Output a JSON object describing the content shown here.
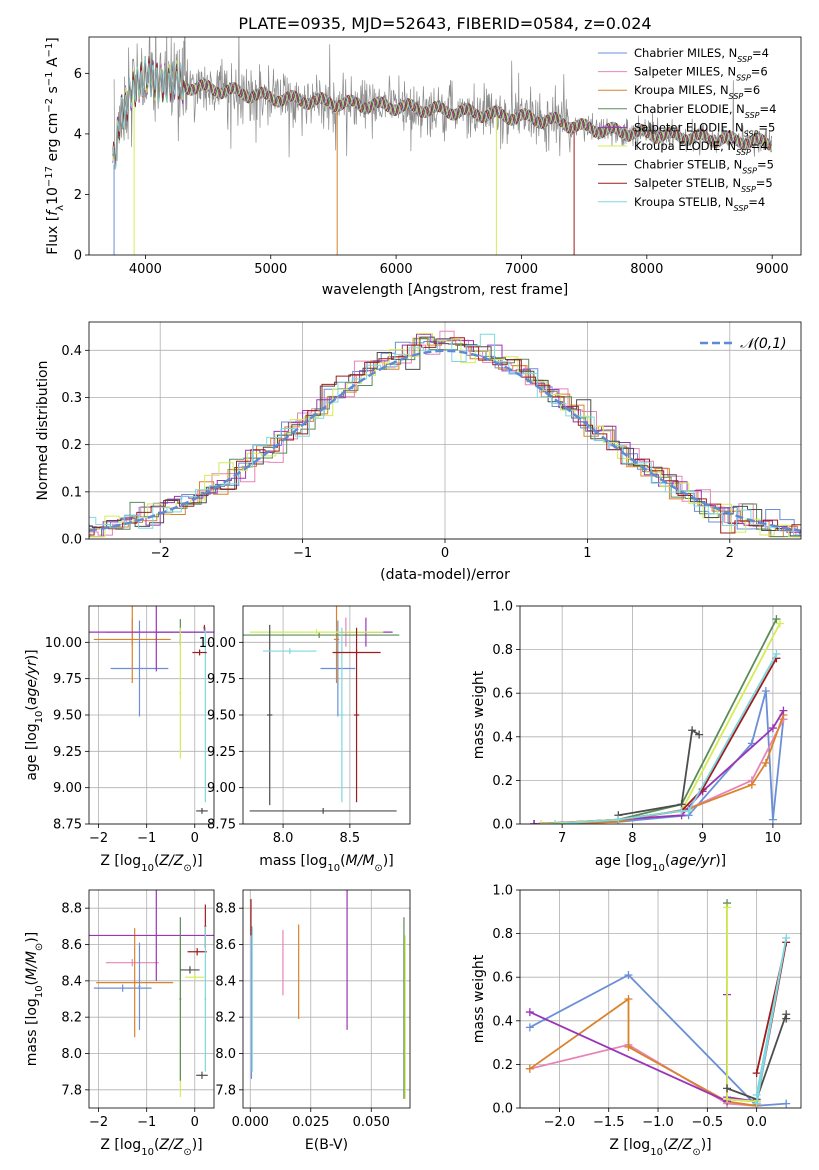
{
  "palette": {
    "Chabrier MILES": "#6a8fd8",
    "Salpeter MILES": "#e884b8",
    "Kroupa MILES": "#d9832a",
    "Chabrier ELODIE": "#5b8a5b",
    "Salpeter ELODIE": "#9a35b8",
    "Kroupa ELODIE": "#d4ec55",
    "Chabrier STELIB": "#4d4d4d",
    "Salpeter STELIB": "#a01c1c",
    "Kroupa STELIB": "#7ed8e0",
    "data": "#8a8a8a"
  },
  "chart_data": [
    {
      "id": "spectrum",
      "type": "line",
      "title": "PLATE=0935, MJD=52643, FIBERID=0584, z=0.024",
      "xlabel": "wavelength [Angstrom, rest frame]",
      "ylabel": "Flux [f_λ10^-17 erg cm^-2 s^-1 A^-1]",
      "xlim": [
        3550,
        9230
      ],
      "ylim": [
        0,
        7.2
      ],
      "xticks": [
        4000,
        5000,
        6000,
        7000,
        8000,
        9000
      ],
      "yticks": [
        0,
        2,
        4,
        6
      ],
      "legend_position": "top-right",
      "legend": [
        {
          "name": "Chabrier MILES",
          "nssp": "4"
        },
        {
          "name": "Salpeter MILES",
          "nssp": "6"
        },
        {
          "name": "Kroupa MILES",
          "nssp": "6"
        },
        {
          "name": "Chabrier ELODIE",
          "nssp": "4"
        },
        {
          "name": "Salpeter ELODIE",
          "nssp": "5"
        },
        {
          "name": "Kroupa ELODIE",
          "nssp": "4"
        },
        {
          "name": "Chabrier STELIB",
          "nssp": "5"
        },
        {
          "name": "Salpeter STELIB",
          "nssp": "5"
        },
        {
          "name": "Kroupa STELIB",
          "nssp": "4"
        }
      ],
      "continuum": {
        "x": [
          3750,
          3800,
          3900,
          4000,
          4100,
          4300,
          4500,
          4700,
          5000,
          5300,
          5600,
          6000,
          6300,
          6600,
          7000,
          7300,
          7500,
          7700,
          8000,
          8500,
          9000
        ],
        "y": [
          3.0,
          4.5,
          5.6,
          5.8,
          5.8,
          5.6,
          5.5,
          5.4,
          5.2,
          5.1,
          5.0,
          4.9,
          4.8,
          4.7,
          4.55,
          4.4,
          4.2,
          4.1,
          4.0,
          3.85,
          3.7
        ]
      }
    },
    {
      "id": "residuals",
      "type": "histogram",
      "xlabel": "(data-model)/error",
      "ylabel": "Normed distribution",
      "xlim": [
        -2.5,
        2.5
      ],
      "ylim": [
        0,
        0.46
      ],
      "xticks": [
        -2,
        -1,
        0,
        1,
        2
      ],
      "yticks": [
        0.0,
        0.1,
        0.2,
        0.3,
        0.4
      ],
      "grid": true,
      "bin_width": 0.1,
      "reference": {
        "name": "𝒩(0,1)",
        "mean": 0,
        "sigma": 1
      },
      "legend_position": "top-right"
    },
    {
      "id": "age_vs_Z",
      "type": "errorbar",
      "xlabel": "Z [log10(Z/Z☉)]",
      "ylabel": "age [log10(age/yr)]",
      "xlim": [
        -2.2,
        0.4
      ],
      "ylim": [
        8.75,
        10.25
      ],
      "xticks": [
        -2,
        -1,
        0
      ],
      "yticks": [
        8.75,
        9.0,
        9.25,
        9.5,
        9.75,
        10.0
      ],
      "grid": true,
      "points": [
        {
          "s": "Chabrier MILES",
          "x": -1.15,
          "xe": 0.6,
          "y": 9.82,
          "ye": 0.33
        },
        {
          "s": "Salpeter MILES",
          "x": -1.3,
          "xe": 0.55,
          "y": 10.07,
          "ye": 0.09
        },
        {
          "s": "Kroupa MILES",
          "x": -1.3,
          "xe": 0.8,
          "y": 10.02,
          "ye": 0.3
        },
        {
          "s": "Chabrier ELODIE",
          "x": -0.3,
          "xe": 0.5,
          "y": 10.07,
          "ye": 0.09
        },
        {
          "s": "Salpeter ELODIE",
          "x": -0.8,
          "xe": 1.4,
          "y": 10.07,
          "ye": 0.27
        },
        {
          "s": "Kroupa ELODIE",
          "x": -0.3,
          "xe": 0.02,
          "y": 9.65,
          "ye": 0.45
        },
        {
          "s": "Chabrier STELIB",
          "x": 0.15,
          "xe": 0.12,
          "y": 8.84,
          "ye": 0.02
        },
        {
          "s": "Salpeter STELIB",
          "x": 0.2,
          "xe": 0.02,
          "y": 10.1,
          "ye": 0.02
        },
        {
          "s": "Kroupa STELIB",
          "x": 0.22,
          "xe": 0.02,
          "y": 9.5,
          "ye": 0.6
        },
        {
          "s": "Salpeter STELIB",
          "x": 0.1,
          "xe": 0.15,
          "y": 9.93,
          "ye": 0.02
        }
      ]
    },
    {
      "id": "age_vs_mass",
      "type": "errorbar",
      "xlabel": "mass [log10(M/M☉)]",
      "ylabel": "",
      "xlim": [
        7.7,
        8.95
      ],
      "ylim": [
        8.75,
        10.25
      ],
      "xticks": [
        8.0,
        8.5
      ],
      "yticks": [
        8.75,
        9.0,
        9.25,
        9.5,
        9.75,
        10.0
      ],
      "grid": true,
      "points": [
        {
          "s": "Chabrier MILES",
          "x": 8.41,
          "xe": 0.13,
          "y": 9.82,
          "ye": 0.33
        },
        {
          "s": "Salpeter MILES",
          "x": 8.47,
          "xe": 0.02,
          "y": 10.07,
          "ye": 0.1
        },
        {
          "s": "Kroupa MILES",
          "x": 8.4,
          "xe": 0.02,
          "y": 10.02,
          "ye": 0.3
        },
        {
          "s": "Chabrier ELODIE",
          "x": 8.27,
          "xe": 0.6,
          "y": 10.05,
          "ye": 0.02
        },
        {
          "s": "Salpeter ELODIE",
          "x": 8.62,
          "xe": 0.2,
          "y": 10.07,
          "ye": 0.1
        },
        {
          "s": "Kroupa ELODIE",
          "x": 8.25,
          "xe": 0.5,
          "y": 10.07,
          "ye": 0.02
        },
        {
          "s": "Chabrier STELIB",
          "x": 8.3,
          "xe": 0.55,
          "y": 8.84,
          "ye": 0.02
        },
        {
          "s": "Salpeter STELIB",
          "x": 8.55,
          "xe": 0.02,
          "y": 9.5,
          "ye": 0.6
        },
        {
          "s": "Kroupa STELIB",
          "x": 8.44,
          "xe": 0.02,
          "y": 9.5,
          "ye": 0.6
        },
        {
          "s": "Chabrier STELIB",
          "x": 7.9,
          "xe": 0.02,
          "y": 9.5,
          "ye": 0.62
        },
        {
          "s": "Salpeter STELIB",
          "x": 8.55,
          "xe": 0.18,
          "y": 9.93,
          "ye": 0.02
        },
        {
          "s": "Kroupa STELIB",
          "x": 8.05,
          "xe": 0.2,
          "y": 9.94,
          "ye": 0.02
        }
      ]
    },
    {
      "id": "weight_vs_age",
      "type": "line",
      "xlabel": "age [log10(age/yr)]",
      "ylabel": "mass weight",
      "xlim": [
        6.4,
        10.4
      ],
      "ylim": [
        0,
        1
      ],
      "xticks": [
        7,
        8,
        9,
        10
      ],
      "yticks": [
        0.0,
        0.2,
        0.4,
        0.6,
        0.8,
        1.0
      ],
      "grid": true,
      "series": [
        {
          "s": "Chabrier MILES",
          "x": [
            6.6,
            7.8,
            8.8,
            9.7,
            9.9,
            10.0,
            10.15
          ],
          "y": [
            0.0,
            0.01,
            0.04,
            0.37,
            0.61,
            0.02,
            0.48
          ]
        },
        {
          "s": "Salpeter MILES",
          "x": [
            6.6,
            7.8,
            8.8,
            9.7,
            10.15
          ],
          "y": [
            0.0,
            0.01,
            0.07,
            0.2,
            0.48
          ]
        },
        {
          "s": "Kroupa MILES",
          "x": [
            6.6,
            7.8,
            8.8,
            9.7,
            9.9,
            10.15
          ],
          "y": [
            0.0,
            0.01,
            0.07,
            0.18,
            0.28,
            0.5
          ]
        },
        {
          "s": "Chabrier ELODIE",
          "x": [
            6.6,
            7.8,
            8.7,
            10.05
          ],
          "y": [
            0.0,
            0.02,
            0.09,
            0.94
          ]
        },
        {
          "s": "Salpeter ELODIE",
          "x": [
            6.6,
            7.8,
            8.7,
            9.0,
            10.0,
            10.15
          ],
          "y": [
            0.0,
            0.02,
            0.04,
            0.15,
            0.44,
            0.52
          ]
        },
        {
          "s": "Kroupa ELODIE",
          "x": [
            6.7,
            7.8,
            8.7,
            10.1
          ],
          "y": [
            0.0,
            0.02,
            0.06,
            0.92
          ]
        },
        {
          "s": "Chabrier STELIB",
          "x": [
            7.8,
            8.7,
            8.85,
            8.95
          ],
          "y": [
            0.04,
            0.09,
            0.43,
            0.41
          ]
        },
        {
          "s": "Salpeter STELIB",
          "x": [
            7.8,
            8.7,
            9.0,
            10.05
          ],
          "y": [
            0.02,
            0.06,
            0.16,
            0.76
          ]
        },
        {
          "s": "Kroupa STELIB",
          "x": [
            6.9,
            7.8,
            8.7,
            8.8,
            10.05
          ],
          "y": [
            0.0,
            0.02,
            0.06,
            0.06,
            0.78
          ]
        }
      ]
    },
    {
      "id": "mass_vs_Z",
      "type": "errorbar",
      "xlabel": "Z [log10(Z/Z☉)]",
      "ylabel": "mass [log10(M/M☉)]",
      "xlim": [
        -2.2,
        0.4
      ],
      "ylim": [
        7.7,
        8.9
      ],
      "xticks": [
        -2,
        -1,
        0
      ],
      "yticks": [
        7.8,
        8.0,
        8.2,
        8.4,
        8.6,
        8.8
      ],
      "grid": true,
      "points": [
        {
          "s": "Chabrier MILES",
          "x": -1.5,
          "xe": 0.6,
          "y": 8.36,
          "ye": 0.02
        },
        {
          "s": "Salpeter MILES",
          "x": -1.3,
          "xe": 0.55,
          "y": 8.5,
          "ye": 0.02
        },
        {
          "s": "Kroupa MILES",
          "x": -1.25,
          "xe": 0.8,
          "y": 8.39,
          "ye": 0.3
        },
        {
          "s": "Chabrier MILES",
          "x": -1.15,
          "xe": 0.02,
          "y": 8.37,
          "ye": 0.24
        },
        {
          "s": "Salpeter ELODIE",
          "x": -0.8,
          "xe": 1.4,
          "y": 8.65,
          "ye": 0.25
        },
        {
          "s": "Kroupa ELODIE",
          "x": -0.3,
          "xe": 0.02,
          "y": 8.2,
          "ye": 0.44
        },
        {
          "s": "Chabrier ELODIE",
          "x": -0.3,
          "xe": 0.02,
          "y": 8.3,
          "ye": 0.45
        },
        {
          "s": "Chabrier STELIB",
          "x": -0.1,
          "xe": 0.2,
          "y": 8.46,
          "ye": 0.02
        },
        {
          "s": "Chabrier STELIB",
          "x": 0.15,
          "xe": 0.12,
          "y": 7.88,
          "ye": 0.02
        },
        {
          "s": "Salpeter STELIB",
          "x": 0.22,
          "xe": 0.02,
          "y": 8.7,
          "ye": 0.12
        },
        {
          "s": "Salpeter STELIB",
          "x": 0.05,
          "xe": 0.2,
          "y": 8.56,
          "ye": 0.02
        },
        {
          "s": "Kroupa STELIB",
          "x": 0.22,
          "xe": 0.02,
          "y": 8.3,
          "ye": 0.4
        },
        {
          "s": "Kroupa ELODIE",
          "x": 0.0,
          "xe": 0.2,
          "y": 8.42,
          "ye": 0.02
        }
      ]
    },
    {
      "id": "mass_vs_ebv",
      "type": "errorbar",
      "xlabel": "E(B-V)",
      "ylabel": "",
      "xlim": [
        -0.003,
        0.066
      ],
      "ylim": [
        7.7,
        8.9
      ],
      "xticks": [
        0.0,
        0.025,
        0.05
      ],
      "yticks": [
        7.8,
        8.0,
        8.2,
        8.4,
        8.6,
        8.8
      ],
      "grid": true,
      "points": [
        {
          "s": "Chabrier MILES",
          "x": 0.0005,
          "xe": 0.0,
          "y": 8.28,
          "ye": 0.42
        },
        {
          "s": "Kroupa STELIB",
          "x": 0.0008,
          "xe": 0.0,
          "y": 8.3,
          "ye": 0.4
        },
        {
          "s": "Salpeter STELIB",
          "x": 0.0003,
          "xe": 0.0,
          "y": 8.75,
          "ye": 0.1
        },
        {
          "s": "Salpeter MILES",
          "x": 0.0135,
          "xe": 0.0,
          "y": 8.5,
          "ye": 0.18
        },
        {
          "s": "Kroupa MILES",
          "x": 0.02,
          "xe": 0.0,
          "y": 8.45,
          "ye": 0.26
        },
        {
          "s": "Salpeter ELODIE",
          "x": 0.04,
          "xe": 0.0,
          "y": 8.52,
          "ye": 0.39
        },
        {
          "s": "Chabrier ELODIE",
          "x": 0.0635,
          "xe": 0.0,
          "y": 8.25,
          "ye": 0.5
        },
        {
          "s": "Kroupa ELODIE",
          "x": 0.064,
          "xe": 0.0,
          "y": 8.2,
          "ye": 0.45
        }
      ]
    },
    {
      "id": "weight_vs_Z",
      "type": "line",
      "xlabel": "Z [log10(Z/Z☉)]",
      "ylabel": "mass weight",
      "xlim": [
        -2.4,
        0.45
      ],
      "ylim": [
        0,
        1
      ],
      "xticks": [
        -2.0,
        -1.5,
        -1.0,
        -0.5,
        0.0
      ],
      "yticks": [
        0.0,
        0.2,
        0.4,
        0.6,
        0.8,
        1.0
      ],
      "grid": true,
      "series": [
        {
          "s": "Chabrier MILES",
          "x": [
            -2.3,
            -1.3,
            0.0,
            0.3
          ],
          "y": [
            0.37,
            0.61,
            0.01,
            0.02
          ]
        },
        {
          "s": "Salpeter MILES",
          "x": [
            -2.3,
            -1.3,
            -0.3,
            0.0
          ],
          "y": [
            0.18,
            0.29,
            0.02,
            0.01
          ]
        },
        {
          "s": "Kroupa MILES",
          "x": [
            -2.3,
            -1.3,
            -1.3,
            -0.3,
            0.0
          ],
          "y": [
            0.18,
            0.5,
            0.28,
            0.03,
            0.01
          ]
        },
        {
          "s": "Chabrier ELODIE",
          "x": [
            -0.3,
            -0.3,
            0.0
          ],
          "y": [
            0.94,
            0.04,
            0.03
          ]
        },
        {
          "s": "Salpeter ELODIE",
          "x": [
            -2.3,
            -0.3,
            -0.3,
            -0.3,
            0.0
          ],
          "y": [
            0.44,
            0.03,
            0.52,
            0.05,
            0.03
          ]
        },
        {
          "s": "Kroupa ELODIE",
          "x": [
            -0.3,
            -0.3,
            0.0
          ],
          "y": [
            0.92,
            0.04,
            0.03
          ]
        },
        {
          "s": "Chabrier STELIB",
          "x": [
            -0.3,
            0.0,
            0.3,
            0.3
          ],
          "y": [
            0.09,
            0.04,
            0.43,
            0.41
          ]
        },
        {
          "s": "Salpeter STELIB",
          "x": [
            0.0,
            0.3,
            0.0
          ],
          "y": [
            0.16,
            0.76,
            0.02
          ]
        },
        {
          "s": "Kroupa STELIB",
          "x": [
            0.0,
            0.3,
            0.0
          ],
          "y": [
            0.06,
            0.78,
            0.02
          ]
        }
      ]
    }
  ]
}
